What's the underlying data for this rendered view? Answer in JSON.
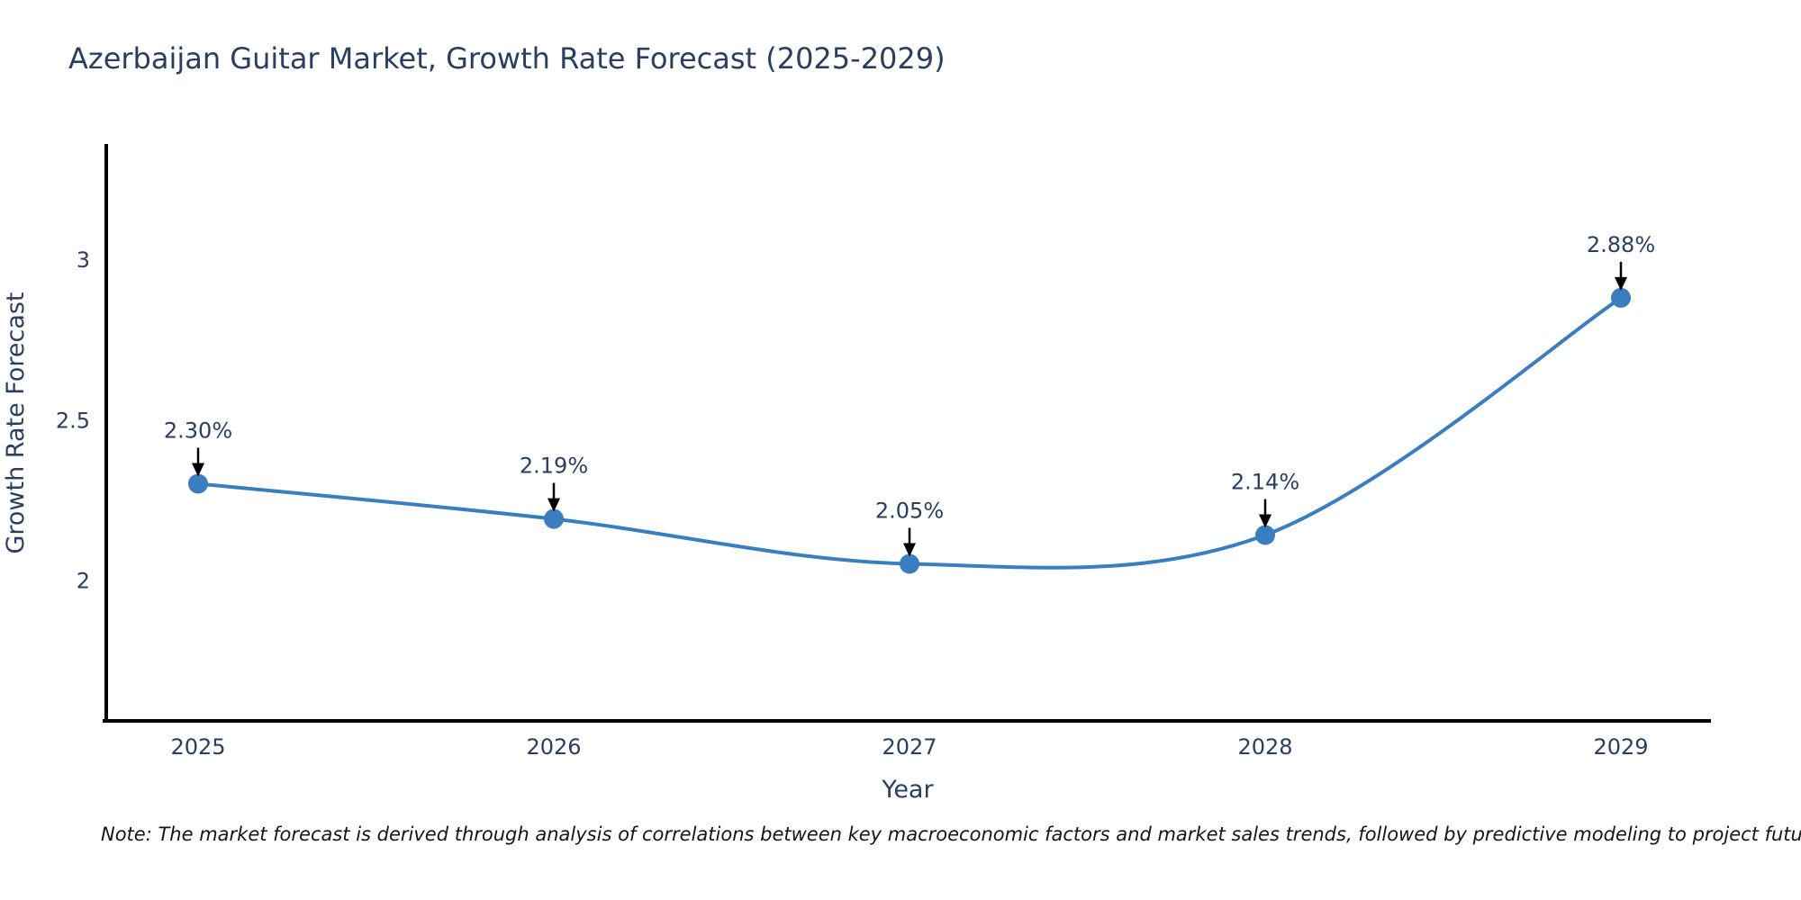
{
  "title": "Azerbaijan Guitar Market, Growth Rate Forecast (2025-2029)",
  "note": "Note: The market forecast is derived through analysis of correlations between key macroeconomic factors and market sales trends, followed by predictive modeling to project future sales",
  "chart_data": {
    "type": "line",
    "title": "Azerbaijan Guitar Market, Growth Rate Forecast (2025-2029)",
    "x": [
      "2025",
      "2026",
      "2027",
      "2028",
      "2029"
    ],
    "series": [
      {
        "name": "Growth Rate Forecast",
        "values": [
          2.3,
          2.19,
          2.05,
          2.14,
          2.88
        ]
      }
    ],
    "point_labels": [
      "2.30%",
      "2.19%",
      "2.05%",
      "2.14%",
      "2.88%"
    ],
    "xlabel": "Year",
    "ylabel": "Growth Rate Forecast",
    "yticks": [
      2,
      2.5,
      3
    ],
    "ytick_labels": [
      "2",
      "2.5",
      "3"
    ],
    "ylim": [
      1.56,
      3.36
    ],
    "line_shape": "spline",
    "grid": false,
    "legend": "none",
    "colors": {
      "line": "#3a7ebf",
      "marker": "#3a7ebf",
      "axis": "#000000",
      "text": "#2a3f5f",
      "annotation_arrow": "#000000",
      "background": "#ffffff",
      "note_text": "#161616"
    }
  }
}
